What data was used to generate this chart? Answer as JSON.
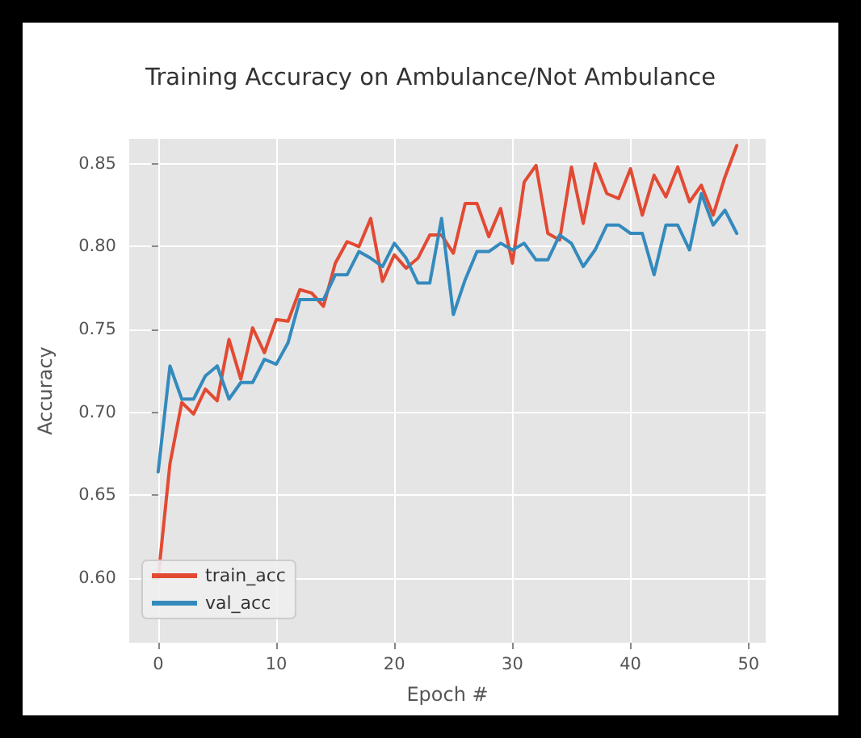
{
  "chart_data": {
    "type": "line",
    "title": "Training Accuracy on Ambulance/Not Ambulance",
    "xlabel": "Epoch #",
    "ylabel": "Accuracy",
    "x": [
      0,
      1,
      2,
      3,
      4,
      5,
      6,
      7,
      8,
      9,
      10,
      11,
      12,
      13,
      14,
      15,
      16,
      17,
      18,
      19,
      20,
      21,
      22,
      23,
      24,
      25,
      26,
      27,
      28,
      29,
      30,
      31,
      32,
      33,
      34,
      35,
      36,
      37,
      38,
      39,
      40,
      41,
      42,
      43,
      44,
      45,
      46,
      47,
      48,
      49
    ],
    "series": [
      {
        "name": "train_acc",
        "color": "#e24a33",
        "values": [
          0.6,
          0.669,
          0.706,
          0.699,
          0.714,
          0.707,
          0.744,
          0.72,
          0.751,
          0.736,
          0.756,
          0.755,
          0.774,
          0.772,
          0.764,
          0.79,
          0.803,
          0.8,
          0.817,
          0.779,
          0.795,
          0.787,
          0.793,
          0.807,
          0.807,
          0.796,
          0.826,
          0.826,
          0.806,
          0.823,
          0.79,
          0.839,
          0.849,
          0.808,
          0.804,
          0.848,
          0.814,
          0.85,
          0.832,
          0.829,
          0.847,
          0.819,
          0.843,
          0.83,
          0.848,
          0.827,
          0.837,
          0.819,
          0.842,
          0.861
        ]
      },
      {
        "name": "val_acc",
        "color": "#348abd",
        "values": [
          0.664,
          0.728,
          0.708,
          0.708,
          0.722,
          0.728,
          0.708,
          0.718,
          0.718,
          0.732,
          0.729,
          0.742,
          0.768,
          0.768,
          0.768,
          0.783,
          0.783,
          0.797,
          0.793,
          0.788,
          0.802,
          0.793,
          0.778,
          0.778,
          0.817,
          0.759,
          0.78,
          0.797,
          0.797,
          0.802,
          0.798,
          0.802,
          0.792,
          0.792,
          0.807,
          0.802,
          0.788,
          0.798,
          0.813,
          0.813,
          0.808,
          0.808,
          0.783,
          0.813,
          0.813,
          0.798,
          0.832,
          0.813,
          0.822,
          0.808
        ]
      }
    ],
    "xlim": [
      -2.45,
      51.45
    ],
    "xticks": [
      0,
      10,
      20,
      30,
      40,
      50
    ],
    "ylim": [
      0.561,
      0.865
    ],
    "yticks": [
      {
        "value": 0.6,
        "label": "0.60"
      },
      0.65,
      {
        "value": 0.7,
        "label": "0.70"
      },
      0.75,
      {
        "value": 0.8,
        "label": "0.80"
      },
      0.85
    ],
    "grid": true,
    "legend": "bottom left",
    "marker": "none",
    "line_style": "solid"
  }
}
